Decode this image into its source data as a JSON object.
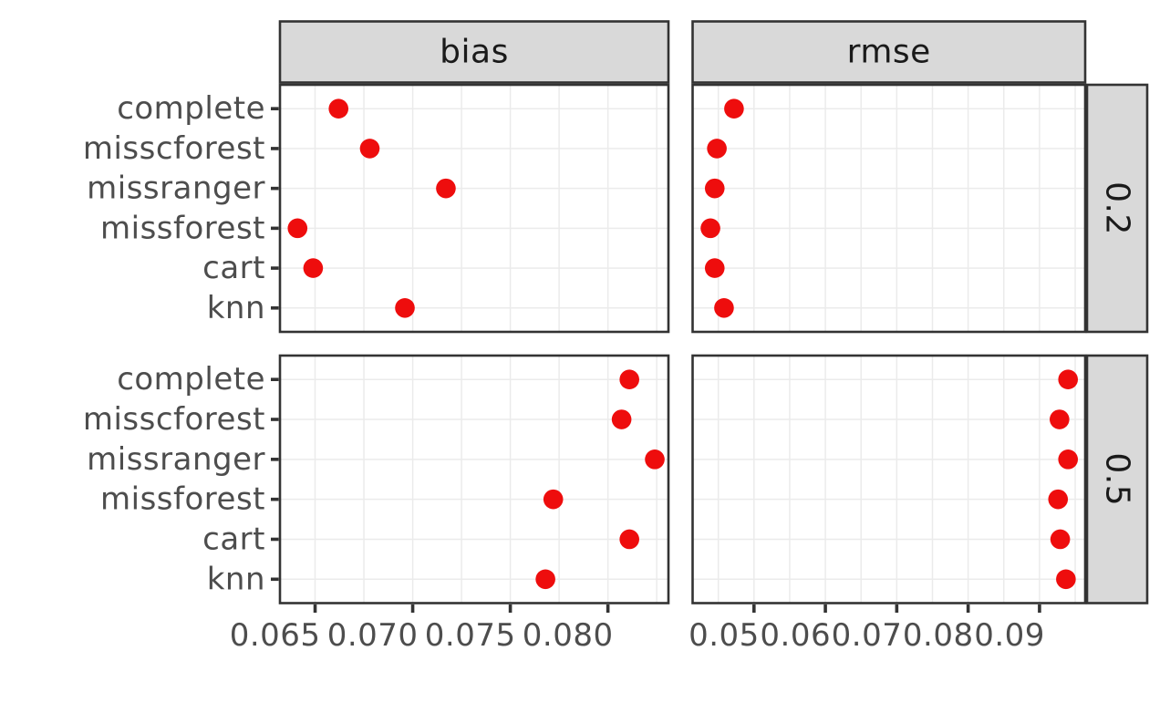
{
  "colors": {
    "point": "#EE0D0D",
    "strip_fill": "#D9D9D9",
    "strip_border": "#333333",
    "panel_border": "#333333",
    "panel_fill": "#FFFFFF",
    "grid": "#EBEBEB",
    "axis_text": "#4D4D4D",
    "tick": "#333333",
    "strip_text": "#1A1A1A"
  },
  "chart_data": {
    "type": "scatter",
    "title": "",
    "xlabel": "",
    "ylabel": "",
    "legend": "none",
    "grid": "on",
    "facet_cols": [
      "bias",
      "rmse"
    ],
    "facet_rows": [
      "0.2",
      "0.5"
    ],
    "categories": [
      "complete",
      "misscforest",
      "missranger",
      "missforest",
      "cart",
      "knn"
    ],
    "x_axes": {
      "bias": {
        "ticks": [
          0.065,
          0.07,
          0.075,
          0.08
        ],
        "tick_labels": [
          "0.065",
          "0.070",
          "0.075",
          "0.080"
        ],
        "minor_ticks": [
          0.0675,
          0.0725,
          0.0775,
          0.0825
        ],
        "range": [
          0.0632,
          0.0831
        ]
      },
      "rmse": {
        "ticks": [
          0.05,
          0.06,
          0.07,
          0.08,
          0.09
        ],
        "tick_labels": [
          "0.05",
          "0.06",
          "0.07",
          "0.08",
          "0.09"
        ],
        "minor_ticks": [
          0.045,
          0.055,
          0.065,
          0.075,
          0.085,
          0.095
        ],
        "range": [
          0.0414,
          0.0964
        ]
      }
    },
    "panels": [
      {
        "col": "bias",
        "row": "0.2",
        "values": [
          0.0662,
          0.0678,
          0.0717,
          0.0641,
          0.0649,
          0.0696
        ]
      },
      {
        "col": "rmse",
        "row": "0.2",
        "values": [
          0.0472,
          0.0448,
          0.0445,
          0.0439,
          0.0445,
          0.0458
        ]
      },
      {
        "col": "bias",
        "row": "0.5",
        "values": [
          0.0811,
          0.0807,
          0.0824,
          0.0772,
          0.0811,
          0.0768
        ]
      },
      {
        "col": "rmse",
        "row": "0.5",
        "values": [
          0.094,
          0.0928,
          0.094,
          0.0926,
          0.0929,
          0.0937
        ]
      }
    ]
  }
}
